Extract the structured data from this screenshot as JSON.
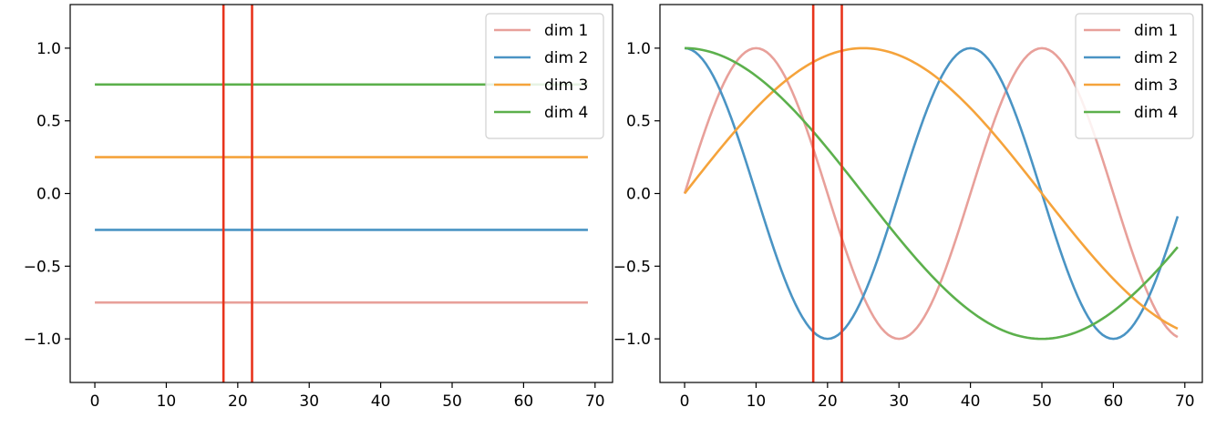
{
  "chart_data": [
    {
      "type": "line",
      "xlim": [
        -3.45,
        72.45
      ],
      "ylim": [
        -1.3,
        1.3
      ],
      "xticks": [
        0,
        10,
        20,
        30,
        40,
        50,
        60,
        70
      ],
      "yticks": [
        -1.0,
        -0.5,
        0.0,
        0.5,
        1.0
      ],
      "xtick_labels": [
        "0",
        "10",
        "20",
        "30",
        "40",
        "50",
        "60",
        "70"
      ],
      "ytick_labels": [
        "−1.0",
        "−0.5",
        "0.0",
        "0.5",
        "1.0"
      ],
      "grid": false,
      "legend_position": "upper right",
      "vlines": [
        18,
        22
      ],
      "vline_color": "#e8341c",
      "series": [
        {
          "name": "dim 1",
          "color": "#e8a09a",
          "x_range": [
            0,
            69
          ],
          "formula": "constant",
          "value": -0.75
        },
        {
          "name": "dim 2",
          "color": "#4a94c4",
          "x_range": [
            0,
            69
          ],
          "formula": "constant",
          "value": -0.25
        },
        {
          "name": "dim 3",
          "color": "#f5a33b",
          "x_range": [
            0,
            69
          ],
          "formula": "constant",
          "value": 0.25
        },
        {
          "name": "dim 4",
          "color": "#5cb04c",
          "x_range": [
            0,
            69
          ],
          "formula": "constant",
          "value": 0.75
        }
      ]
    },
    {
      "type": "line",
      "xlim": [
        -3.45,
        72.45
      ],
      "ylim": [
        -1.3,
        1.3
      ],
      "xticks": [
        0,
        10,
        20,
        30,
        40,
        50,
        60,
        70
      ],
      "yticks": [
        -1.0,
        -0.5,
        0.0,
        0.5,
        1.0
      ],
      "xtick_labels": [
        "0",
        "10",
        "20",
        "30",
        "40",
        "50",
        "60",
        "70"
      ],
      "ytick_labels": [
        "−1.0",
        "−0.5",
        "0.0",
        "0.5",
        "1.0"
      ],
      "grid": false,
      "legend_position": "upper right",
      "vlines": [
        18,
        22
      ],
      "vline_color": "#e8341c",
      "series": [
        {
          "name": "dim 1",
          "color": "#e8a09a",
          "x_range": [
            0,
            69
          ],
          "formula": "sin",
          "period": 40
        },
        {
          "name": "dim 2",
          "color": "#4a94c4",
          "x_range": [
            0,
            69
          ],
          "formula": "cos",
          "period": 40
        },
        {
          "name": "dim 3",
          "color": "#f5a33b",
          "x_range": [
            0,
            69
          ],
          "formula": "sin",
          "period": 100
        },
        {
          "name": "dim 4",
          "color": "#5cb04c",
          "x_range": [
            0,
            69
          ],
          "formula": "cos",
          "period": 100
        }
      ]
    }
  ]
}
